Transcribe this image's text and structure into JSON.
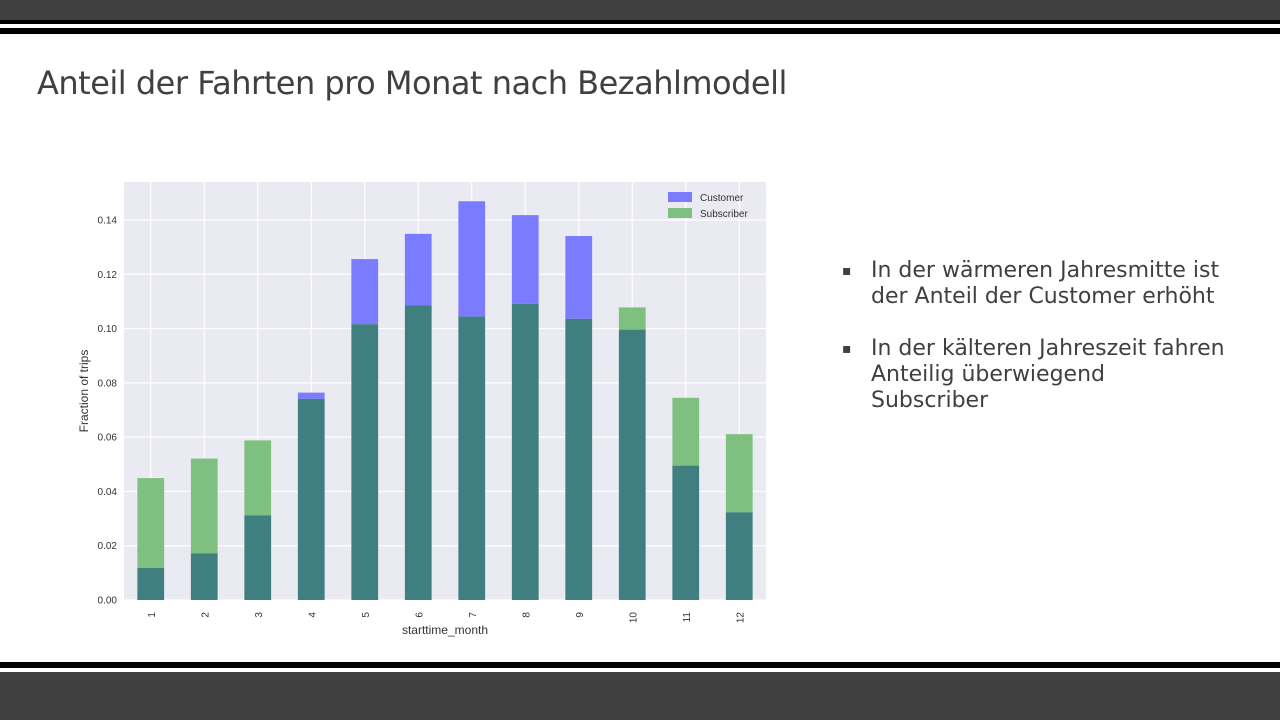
{
  "slide": {
    "title": "Anteil der Fahrten pro Monat nach Bezahlmodell",
    "bullets": [
      {
        "marker": "▪",
        "lines": [
          "In der wärmeren Jahresmitte ist",
          "der Anteil der Customer erhöht"
        ]
      },
      {
        "marker": "▪",
        "lines": [
          "In der kälteren Jahreszeit fahren",
          "Anteilig überwiegend",
          "Subscriber"
        ]
      }
    ]
  },
  "colors": {
    "customer": "#7b7bff",
    "subscriber": "#7fbf7f",
    "overlap": "#3f7f7f",
    "plot_bg": "#eaeaf2"
  },
  "chart_data": {
    "type": "bar",
    "xlabel": "starttime_month",
    "ylabel": "Fraction of trips",
    "ylim": [
      0,
      0.154
    ],
    "yticks": [
      "0.00",
      "0.02",
      "0.04",
      "0.06",
      "0.08",
      "0.10",
      "0.12",
      "0.14"
    ],
    "categories": [
      "1",
      "2",
      "3",
      "4",
      "5",
      "6",
      "7",
      "8",
      "9",
      "10",
      "11",
      "12"
    ],
    "grid": true,
    "legend_position": "top-right",
    "series": [
      {
        "name": "Customer",
        "values": [
          0.0118,
          0.0172,
          0.0312,
          0.0764,
          0.1256,
          0.1349,
          0.1469,
          0.1418,
          0.1341,
          0.0996,
          0.0495,
          0.0323
        ]
      },
      {
        "name": "Subscriber",
        "values": [
          0.0449,
          0.0521,
          0.0588,
          0.0741,
          0.1016,
          0.1086,
          0.1044,
          0.1091,
          0.1036,
          0.1078,
          0.0745,
          0.0611
        ]
      }
    ]
  }
}
